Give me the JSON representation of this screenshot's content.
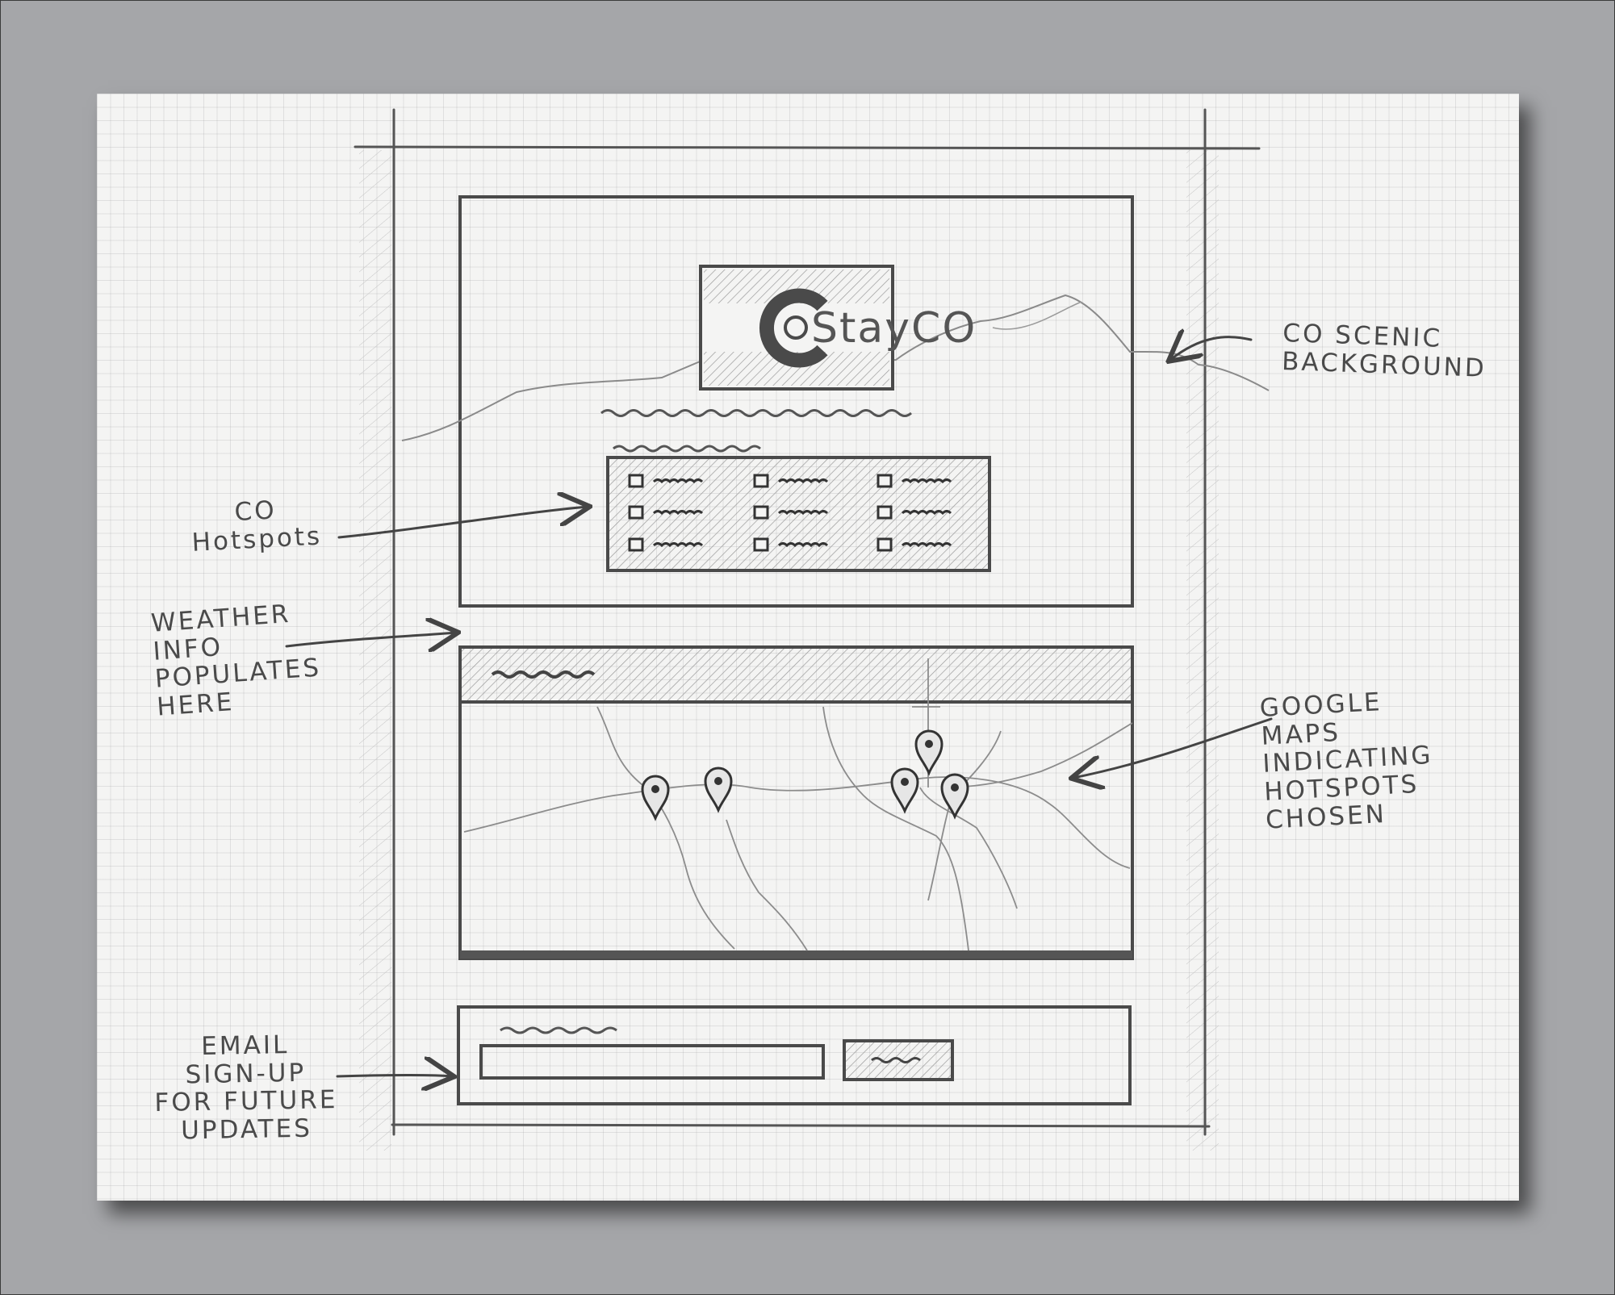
{
  "header": {
    "brand_name": "StayCO"
  },
  "annotations": {
    "scenic_background": "CO SCENIC\nBACKGROUND",
    "hotspots": "CO\nHotspots",
    "weather": "WEATHER\nINFO\nPOPULATES\nHERE",
    "maps": "GOOGLE\nMAPS\nINDICATING\nHOTSPOTS\nCHOSEN",
    "email": "EMAIL\nSIGN-UP\nFOR FUTURE\nUPDATES"
  },
  "colors": {
    "frame_background": "#a5a6a9",
    "paper": "#f4f4f3",
    "pencil": "#4a4a4a"
  },
  "icons": {
    "logo": "colorado-flag-c-logo",
    "map_marker": "map-pin-icon"
  }
}
